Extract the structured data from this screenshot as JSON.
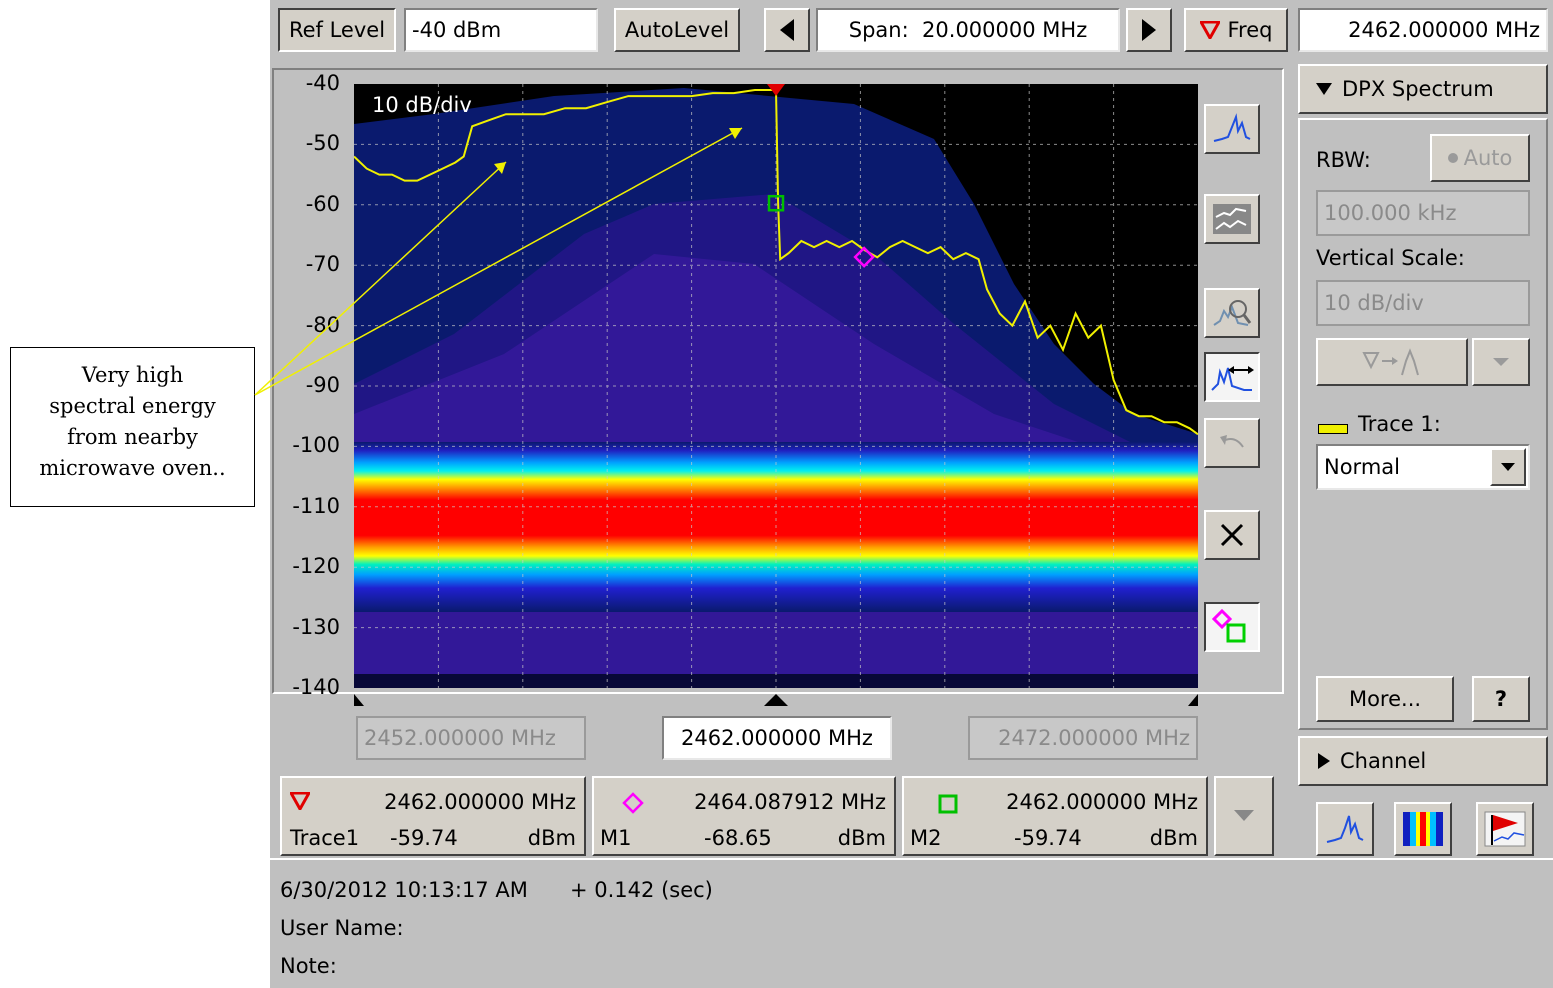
{
  "toolbar": {
    "ref_level_label": "Ref Level",
    "ref_level_value": "-40 dBm",
    "autolevel_label": "AutoLevel",
    "span_label": "Span:",
    "span_value": "20.000000 MHz",
    "freq_label": "Freq",
    "freq_value": "2462.000000 MHz"
  },
  "plot": {
    "scale_label": "10 dB/div",
    "y_ticks": [
      "-40",
      "-50",
      "-60",
      "-70",
      "-80",
      "-90",
      "-100",
      "-110",
      "-120",
      "-130",
      "-140"
    ],
    "start_freq": "2452.000000 MHz",
    "center_freq": "2462.000000 MHz",
    "stop_freq": "2472.000000 MHz"
  },
  "markers": {
    "ref": {
      "freq": "2462.000000 MHz",
      "name": "Trace1",
      "value": "-59.74",
      "unit": "dBm"
    },
    "m1": {
      "freq": "2464.087912 MHz",
      "name": "M1",
      "value": "-68.65",
      "unit": "dBm"
    },
    "m2": {
      "freq": "2462.000000 MHz",
      "name": "M2",
      "value": "-59.74",
      "unit": "dBm"
    }
  },
  "side": {
    "dpx_title": "DPX Spectrum",
    "rbw_label": "RBW:",
    "auto_label": "Auto",
    "rbw_value": "100.000 kHz",
    "vscale_label": "Vertical Scale:",
    "vscale_value": "10 dB/div",
    "trace_label": "Trace 1:",
    "trace_mode": "Normal",
    "more_label": "More...",
    "help_label": "?",
    "channel_label": "Channel"
  },
  "status": {
    "timestamp": "6/30/2012 10:13:17 AM",
    "offset": "+ 0.142 (sec)",
    "user_label": "User Name:",
    "note_label": "Note:"
  },
  "annotation": {
    "line1": "Very high",
    "line2": "spectral energy",
    "line3": "from nearby",
    "line4": "microwave oven.."
  },
  "colors": {
    "trace": "#f0f000",
    "marker_ref": "#e00000",
    "marker_m1": "#ff00ff",
    "marker_m2": "#00c000",
    "plot_bg": "#000000",
    "dpx_fill": "#0a1a6e",
    "dpx_band": "#ff0000"
  },
  "chart_data": {
    "type": "line",
    "xlabel": "",
    "ylabel": "",
    "xlim": [
      2452.0,
      2472.0
    ],
    "ylim": [
      -140,
      -40
    ],
    "series": [
      {
        "x": [
          2452.0,
          2452.3,
          2452.6,
          2452.9,
          2453.2,
          2453.5,
          2453.8,
          2454.1,
          2454.4,
          2454.6,
          2454.8,
          2455.2,
          2455.6,
          2456.0,
          2456.5,
          2457.0,
          2457.5,
          2458.0,
          2458.5,
          2459.0,
          2459.5,
          2460.0,
          2460.5,
          2461.0,
          2461.5,
          2461.9,
          2462.0,
          2462.05,
          2462.1,
          2462.3,
          2462.6,
          2462.9,
          2463.2,
          2463.5,
          2463.8,
          2464.1,
          2464.4,
          2464.7,
          2465.0,
          2465.3,
          2465.6,
          2465.9,
          2466.2,
          2466.5,
          2466.8,
          2467.0,
          2467.3,
          2467.6,
          2467.9,
          2468.2,
          2468.5,
          2468.8,
          2469.1,
          2469.4,
          2469.7,
          2470.0,
          2470.3,
          2470.6,
          2470.9,
          2471.2,
          2471.5,
          2471.8,
          2472.0
        ],
        "y": [
          -52,
          -54,
          -55,
          -55,
          -56,
          -56,
          -55,
          -54,
          -53,
          -52,
          -47,
          -46,
          -45,
          -45,
          -45,
          -44,
          -44,
          -43,
          -42,
          -42,
          -42,
          -42,
          -41.5,
          -41.5,
          -41,
          -41,
          -41,
          -59.7,
          -69,
          -68,
          -66,
          -67,
          -66,
          -67,
          -66,
          -67.5,
          -68.7,
          -67,
          -66,
          -67,
          -68,
          -67,
          -69,
          -68,
          -69,
          -74,
          -78,
          -80,
          -76,
          -82,
          -80,
          -84,
          -78,
          -82,
          -80,
          -89,
          -94,
          -95,
          -95,
          -96,
          -96,
          -97,
          -98
        ]
      }
    ],
    "markers": [
      {
        "name": "Trace1",
        "x": 2462.0,
        "y": -59.74
      },
      {
        "name": "M1",
        "x": 2464.087912,
        "y": -68.65
      },
      {
        "name": "M2",
        "x": 2462.0,
        "y": -59.74
      }
    ]
  }
}
